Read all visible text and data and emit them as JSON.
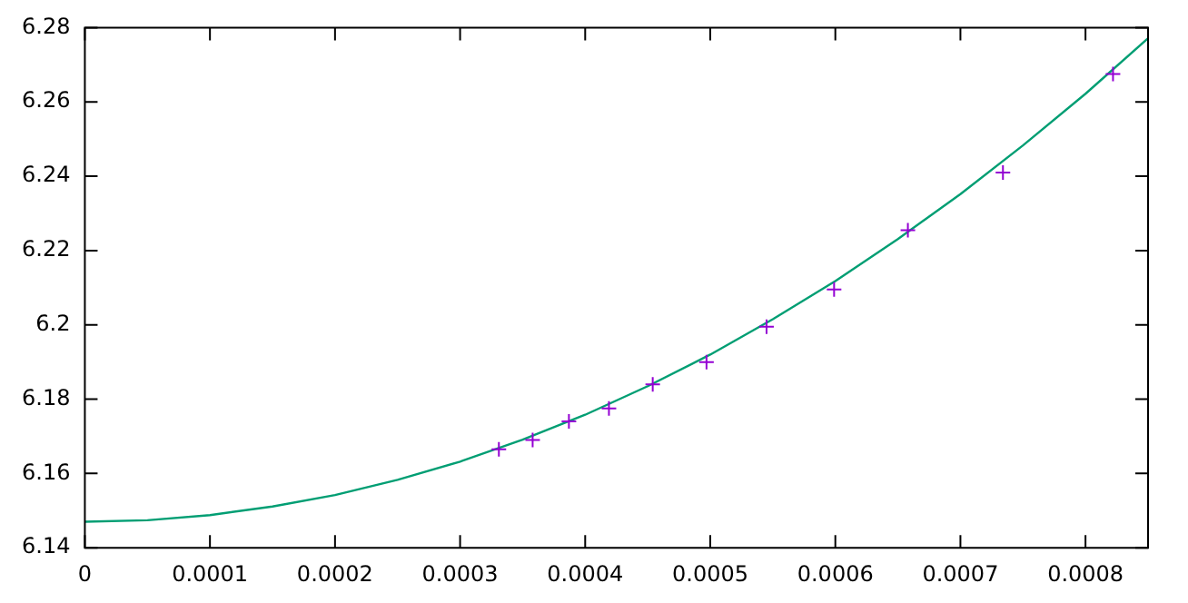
{
  "chart_data": {
    "type": "scatter",
    "xlim": [
      0,
      0.00085
    ],
    "ylim": [
      6.14,
      6.28
    ],
    "xticks": [
      0,
      0.0001,
      0.0002,
      0.0003,
      0.0004,
      0.0005,
      0.0006,
      0.0007,
      0.0008
    ],
    "yticks": [
      6.14,
      6.16,
      6.18,
      6.2,
      6.22,
      6.24,
      6.26,
      6.28
    ],
    "grid": false,
    "legend": false,
    "marker": "cross",
    "series": [
      {
        "color": "#9400d3",
        "x": [
          0.000331,
          0.000358,
          0.000387,
          0.000419,
          0.000454,
          0.000497,
          0.000545,
          0.000599,
          0.000658,
          0.000734,
          0.000822
        ],
        "values": [
          6.1665,
          6.169,
          6.174,
          6.1775,
          6.184,
          6.19,
          6.1995,
          6.2095,
          6.2255,
          6.241,
          6.2675
        ]
      },
      {
        "type": "line",
        "marker": "none",
        "color": "#009e73",
        "x": [
          0,
          5e-05,
          0.0001,
          0.00015,
          0.0002,
          0.00025,
          0.0003,
          0.00035,
          0.0004,
          0.00045,
          0.0005,
          0.00055,
          0.0006,
          0.00065,
          0.0007,
          0.00075,
          0.0008,
          0.00085
        ],
        "values": [
          6.147,
          6.1474,
          6.1488,
          6.1511,
          6.1542,
          6.1583,
          6.1632,
          6.1691,
          6.1758,
          6.1835,
          6.192,
          6.2015,
          6.2118,
          6.2231,
          6.2352,
          6.2483,
          6.2622,
          6.2771
        ]
      }
    ]
  }
}
